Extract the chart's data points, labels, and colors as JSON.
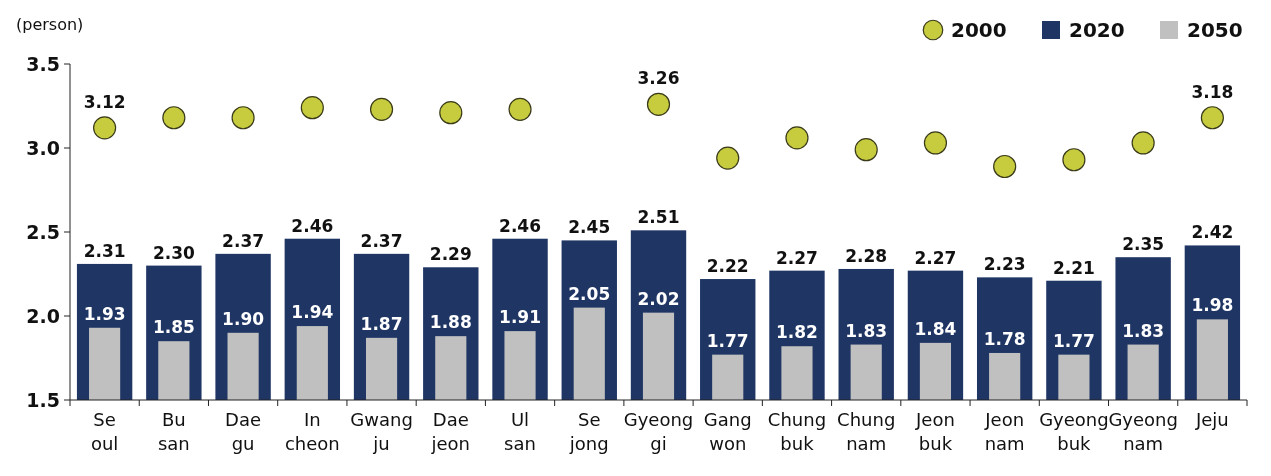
{
  "chart_data": {
    "type": "bar",
    "ylabel": "(person)",
    "categories": [
      "Se\noul",
      "Bu\nsan",
      "Dae\ngu",
      "In\ncheon",
      "Gwang\nju",
      "Dae\njeon",
      "Ul\nsan",
      "Se\njong",
      "Gyeong\ngi",
      "Gang\nwon",
      "Chung\nbuk",
      "Chung\nnam",
      "Jeon\nbuk",
      "Jeon\nnam",
      "Gyeong\nbuk",
      "Gyeong\nnam",
      "Jeju"
    ],
    "series": [
      {
        "name": "2000",
        "type": "scatter",
        "color": "#c6cc3e",
        "values": [
          3.12,
          3.18,
          3.18,
          3.24,
          3.23,
          3.21,
          3.23,
          null,
          3.26,
          2.94,
          3.06,
          2.99,
          3.03,
          2.89,
          2.93,
          3.03,
          3.18
        ],
        "value_labels": [
          "3.12",
          null,
          null,
          null,
          null,
          null,
          null,
          null,
          "3.26",
          null,
          null,
          null,
          null,
          null,
          null,
          null,
          "3.18"
        ]
      },
      {
        "name": "2020",
        "color": "#1f3564",
        "values": [
          2.31,
          2.3,
          2.37,
          2.46,
          2.37,
          2.29,
          2.46,
          2.45,
          2.51,
          2.22,
          2.27,
          2.28,
          2.27,
          2.23,
          2.21,
          2.35,
          2.42
        ],
        "value_labels": [
          "2.31",
          "2.30",
          "2.37",
          "2.46",
          "2.37",
          "2.29",
          "2.46",
          "2.45",
          "2.51",
          "2.22",
          "2.27",
          "2.28",
          "2.27",
          "2.23",
          "2.21",
          "2.35",
          "2.42"
        ]
      },
      {
        "name": "2050",
        "color": "#c0c0c0",
        "values": [
          1.93,
          1.85,
          1.9,
          1.94,
          1.87,
          1.88,
          1.91,
          2.05,
          2.02,
          1.77,
          1.82,
          1.83,
          1.84,
          1.78,
          1.77,
          1.83,
          1.98
        ],
        "value_labels": [
          "1.93",
          "1.85",
          "1.90",
          "1.94",
          "1.87",
          "1.88",
          "1.91",
          "2.05",
          "2.02",
          "1.77",
          "1.82",
          "1.83",
          "1.84",
          "1.78",
          "1.77",
          "1.83",
          "1.98"
        ]
      }
    ],
    "ylim": [
      1.5,
      3.5
    ],
    "yticks": [
      {
        "value": 1.5,
        "label": "1.5"
      },
      {
        "value": 2,
        "label": "2.0"
      },
      {
        "value": 2.5,
        "label": "2.5"
      },
      {
        "value": 3,
        "label": "3.0"
      },
      {
        "value": 3.5,
        "label": "3.5"
      }
    ],
    "marker": "circle",
    "grid": false,
    "legend": "top right"
  }
}
